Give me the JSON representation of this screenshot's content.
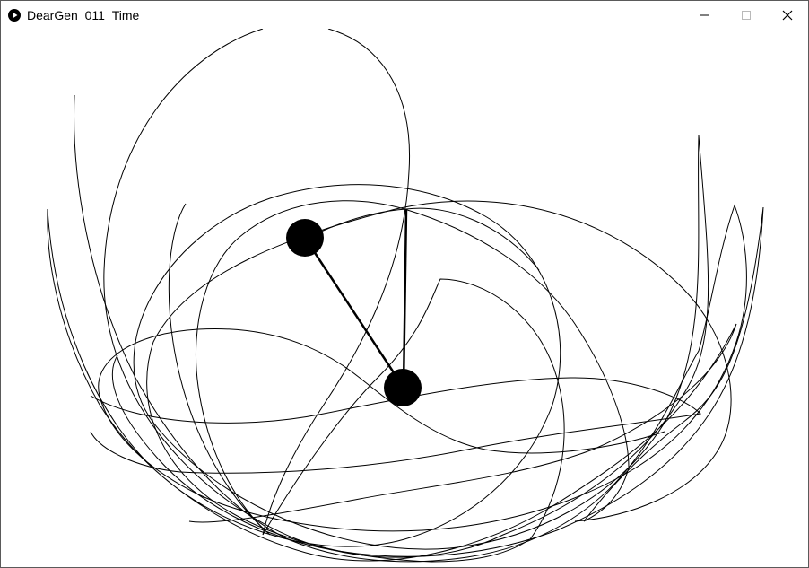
{
  "window": {
    "title": "DearGen_011_Time",
    "icon": "play-circle-icon",
    "controls": [
      {
        "name": "minimize",
        "icon": "minimize-icon"
      },
      {
        "name": "maximize",
        "icon": "maximize-icon"
      },
      {
        "name": "close",
        "icon": "close-icon"
      }
    ]
  },
  "sketch": {
    "background": "#ffffff",
    "stroke_color": "#000000"
  }
}
